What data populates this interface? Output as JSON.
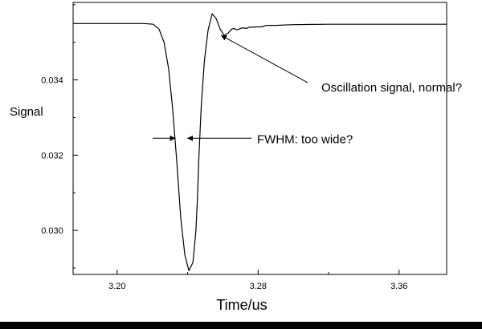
{
  "chart_data": {
    "type": "line",
    "title": "",
    "xlabel": "Time/us",
    "ylabel": "Signal",
    "xlim": [
      3.175,
      3.387
    ],
    "ylim": [
      0.02883,
      0.03606
    ],
    "xticks": [
      3.2,
      3.28,
      3.36
    ],
    "xtick_labels": [
      "3.20",
      "3.28",
      "3.36"
    ],
    "yticks": [
      0.03,
      0.032,
      0.034
    ],
    "ytick_labels": [
      "0.030",
      "0.032",
      "0.034"
    ],
    "grid": false,
    "legend": "none",
    "series": [
      {
        "color": "#000000",
        "x": [
          3.175,
          3.19,
          3.205,
          3.215,
          3.2205,
          3.2238,
          3.2266,
          3.2292,
          3.2315,
          3.2338,
          3.2361,
          3.2384,
          3.2407,
          3.243,
          3.2447,
          3.2455,
          3.2464,
          3.2477,
          3.2495,
          3.2516,
          3.2539,
          3.2562,
          3.2585,
          3.2608,
          3.2631,
          3.2649,
          3.2663,
          3.2677,
          3.2692,
          3.2706,
          3.272,
          3.2733,
          3.2749,
          3.2768,
          3.2789,
          3.2817,
          3.285,
          3.29,
          3.3,
          3.32,
          3.35,
          3.387
        ],
        "y": [
          0.0355,
          0.0355,
          0.0355,
          0.0355,
          0.03548,
          0.03535,
          0.035,
          0.0343,
          0.03323,
          0.03185,
          0.03033,
          0.02935,
          0.02893,
          0.02915,
          0.03,
          0.03077,
          0.03196,
          0.0333,
          0.0345,
          0.03532,
          0.03576,
          0.03563,
          0.03535,
          0.03518,
          0.03525,
          0.03535,
          0.03537,
          0.03533,
          0.03535,
          0.03538,
          0.03538,
          0.03537,
          0.0354,
          0.0354,
          0.03541,
          0.03541,
          0.03545,
          0.03545,
          0.03547,
          0.03548,
          0.03548,
          0.03548
        ]
      }
    ],
    "annotations": [
      {
        "text": "Oscillation signal, normal?",
        "arrow_to": [
          3.258,
          0.03525
        ]
      },
      {
        "text": "FWHM: too wide?",
        "fwhm_y": 0.03245,
        "fwhm_x": [
          3.2331,
          3.2398
        ]
      }
    ]
  }
}
